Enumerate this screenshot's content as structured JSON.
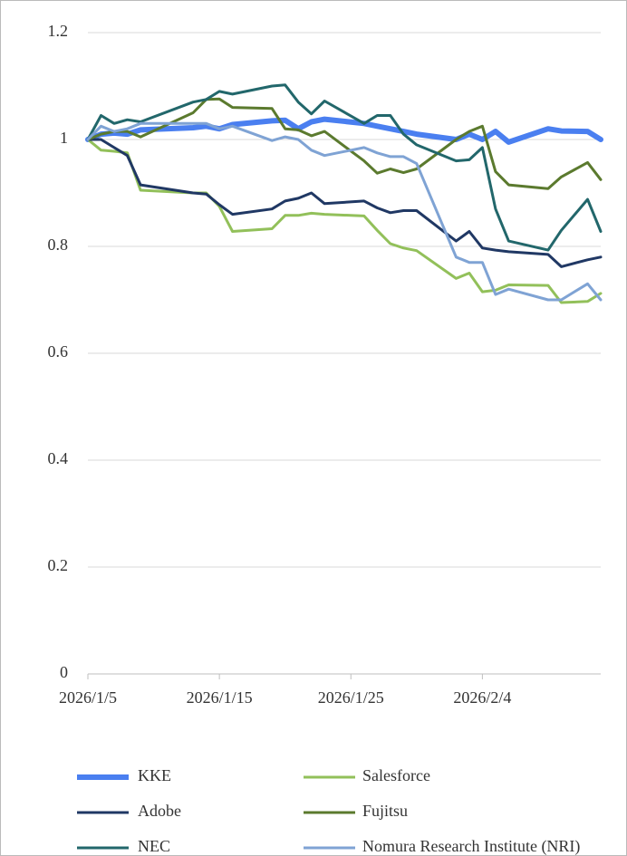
{
  "chart_data": {
    "type": "line",
    "x": [
      "2026/1/5",
      "2026/1/6",
      "2026/1/7",
      "2026/1/8",
      "2026/1/9",
      "2026/1/13",
      "2026/1/14",
      "2026/1/15",
      "2026/1/16",
      "2026/1/19",
      "2026/1/20",
      "2026/1/21",
      "2026/1/22",
      "2026/1/23",
      "2026/1/26",
      "2026/1/27",
      "2026/1/28",
      "2026/1/29",
      "2026/1/30",
      "2026/2/2",
      "2026/2/3",
      "2026/2/4",
      "2026/2/5",
      "2026/2/6",
      "2026/2/9",
      "2026/2/10",
      "2026/2/12",
      "2026/2/13"
    ],
    "series": [
      {
        "name": "KKE",
        "color": "#4a7ff0",
        "width": 6,
        "values": [
          1.0,
          1.01,
          1.012,
          1.01,
          1.018,
          1.022,
          1.025,
          1.02,
          1.028,
          1.035,
          1.036,
          1.02,
          1.033,
          1.038,
          1.03,
          1.025,
          1.02,
          1.015,
          1.01,
          1.0,
          1.01,
          1.0,
          1.015,
          0.995,
          1.02,
          1.016,
          1.015,
          1.0
        ]
      },
      {
        "name": "Salesforce",
        "color": "#92c05a",
        "width": 3,
        "values": [
          1.0,
          0.98,
          0.978,
          0.975,
          0.905,
          0.9,
          0.9,
          0.875,
          0.828,
          0.833,
          0.858,
          0.858,
          0.862,
          0.86,
          0.857,
          0.83,
          0.805,
          0.797,
          0.792,
          0.74,
          0.75,
          0.715,
          0.718,
          0.728,
          0.727,
          0.695,
          0.697,
          0.712
        ]
      },
      {
        "name": "Adobe",
        "color": "#203864",
        "width": 3,
        "values": [
          1.0,
          1.0,
          0.985,
          0.97,
          0.915,
          0.9,
          0.898,
          0.878,
          0.86,
          0.87,
          0.885,
          0.89,
          0.9,
          0.88,
          0.885,
          0.872,
          0.863,
          0.867,
          0.867,
          0.81,
          0.828,
          0.797,
          0.793,
          0.79,
          0.785,
          0.762,
          0.775,
          0.78
        ]
      },
      {
        "name": "Fujitsu",
        "color": "#5b7a2e",
        "width": 3,
        "values": [
          1.0,
          1.01,
          1.015,
          1.015,
          1.005,
          1.05,
          1.075,
          1.076,
          1.06,
          1.058,
          1.02,
          1.018,
          1.007,
          1.015,
          0.96,
          0.937,
          0.945,
          0.938,
          0.945,
          1.0,
          1.015,
          1.025,
          0.94,
          0.915,
          0.908,
          0.93,
          0.957,
          0.925
        ]
      },
      {
        "name": "NEC",
        "color": "#22676b",
        "width": 3,
        "values": [
          1.0,
          1.045,
          1.03,
          1.037,
          1.033,
          1.07,
          1.075,
          1.09,
          1.085,
          1.1,
          1.102,
          1.07,
          1.048,
          1.072,
          1.03,
          1.045,
          1.045,
          1.01,
          0.99,
          0.96,
          0.962,
          0.985,
          0.87,
          0.81,
          0.793,
          0.83,
          0.888,
          0.828
        ]
      },
      {
        "name": "Nomura Research Institute (NRI)",
        "color": "#7fa3d4",
        "width": 3,
        "values": [
          1.0,
          1.025,
          1.015,
          1.02,
          1.03,
          1.03,
          1.03,
          1.02,
          1.025,
          0.998,
          1.005,
          1.0,
          0.98,
          0.97,
          0.985,
          0.975,
          0.968,
          0.968,
          0.955,
          0.78,
          0.77,
          0.77,
          0.71,
          0.72,
          0.7,
          0.7,
          0.73,
          0.7
        ]
      }
    ],
    "xlim": [
      "2026/1/5",
      "2026/2/13"
    ],
    "xticks": [
      "2026/1/5",
      "2026/1/15",
      "2026/1/25",
      "2026/2/4"
    ],
    "ylim": [
      0,
      1.2
    ],
    "yticks": [
      0,
      0.2,
      0.4,
      0.6,
      0.8,
      1,
      1.2
    ],
    "grid": true,
    "legend": "bottom"
  }
}
